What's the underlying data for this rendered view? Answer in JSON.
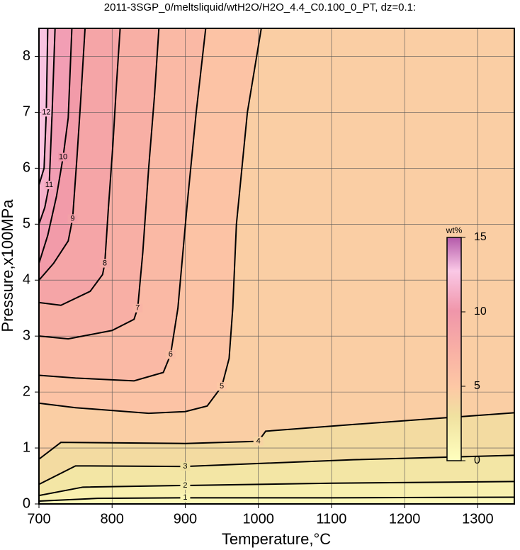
{
  "chart_data": {
    "type": "contour",
    "title": "2011-3SGP_0/meltsliquid/wtH2O/H2O_4.4_C0.100_0_PT, dz=0.1:",
    "x_label": "Temperature,°C",
    "y_label": "Pressure,x100MPa",
    "xlim": [
      700,
      1350
    ],
    "ylim": [
      0,
      8.5
    ],
    "xticks": [
      700,
      800,
      900,
      1000,
      1100,
      1200,
      1300
    ],
    "yticks": [
      0,
      1,
      2,
      3,
      4,
      5,
      6,
      7,
      8
    ],
    "grid": true,
    "series": [
      {
        "name": "1",
        "level": 1,
        "x": [
          700,
          780,
          900,
          1100,
          1350
        ],
        "values": [
          0.05,
          0.1,
          0.11,
          0.11,
          0.12
        ]
      },
      {
        "name": "2",
        "level": 2,
        "x": [
          700,
          760,
          900,
          1100,
          1350
        ],
        "values": [
          0.15,
          0.3,
          0.33,
          0.37,
          0.4
        ]
      },
      {
        "name": "3",
        "level": 3,
        "x": [
          700,
          750,
          900,
          1130,
          1350
        ],
        "values": [
          0.35,
          0.68,
          0.67,
          0.79,
          0.87
        ]
      },
      {
        "name": "4",
        "level": 4,
        "x": [
          700,
          730,
          900,
          1000,
          1010,
          1130,
          1350
        ],
        "values": [
          0.8,
          1.1,
          1.08,
          1.12,
          1.3,
          1.42,
          1.63
        ]
      },
      {
        "name": "5",
        "level": 5,
        "x": [
          700,
          750,
          850,
          900,
          930,
          950,
          960,
          965,
          970,
          985,
          1004
        ],
        "values": [
          1.8,
          1.72,
          1.62,
          1.65,
          1.75,
          2.1,
          2.6,
          3.5,
          5,
          7,
          8.5
        ]
      },
      {
        "name": "6",
        "level": 6,
        "x": [
          700,
          750,
          830,
          870,
          880,
          890,
          903,
          915,
          928
        ],
        "values": [
          2.3,
          2.25,
          2.2,
          2.35,
          2.67,
          3.5,
          5.4,
          7,
          8.5
        ]
      },
      {
        "name": "7",
        "level": 7,
        "x": [
          700,
          740,
          800,
          830,
          835,
          842,
          850,
          858,
          864
        ],
        "values": [
          3.0,
          2.95,
          3.1,
          3.3,
          3.5,
          4.5,
          6,
          7.3,
          8.5
        ]
      },
      {
        "name": "8",
        "level": 8,
        "x": [
          700,
          730,
          770,
          787,
          790,
          795,
          801,
          806,
          811
        ],
        "values": [
          3.6,
          3.55,
          3.8,
          4.1,
          4.3,
          5.3,
          6.4,
          7.5,
          8.5
        ]
      },
      {
        "name": "9",
        "level": 9,
        "x": [
          700,
          720,
          740,
          746,
          752,
          757,
          763
        ],
        "values": [
          4.0,
          4.3,
          4.7,
          5.1,
          6.2,
          7.2,
          8.5
        ]
      },
      {
        "name": "10",
        "level": 10,
        "x": [
          700,
          712,
          724,
          733,
          740,
          745
        ],
        "values": [
          4.3,
          4.8,
          5.5,
          6.2,
          6.9,
          8.5
        ]
      },
      {
        "name": "11",
        "level": 11,
        "x": [
          700,
          708,
          714,
          718,
          722
        ],
        "values": [
          5.0,
          5.3,
          5.7,
          7,
          8.5
        ]
      },
      {
        "name": "12",
        "level": 12,
        "x": [
          700,
          707,
          710,
          712
        ],
        "values": [
          5.7,
          6.0,
          7,
          8.5
        ]
      }
    ],
    "colorbar": {
      "label": "wt%",
      "lim": [
        0,
        15
      ],
      "ticks": [
        0,
        5,
        10,
        15
      ]
    }
  }
}
